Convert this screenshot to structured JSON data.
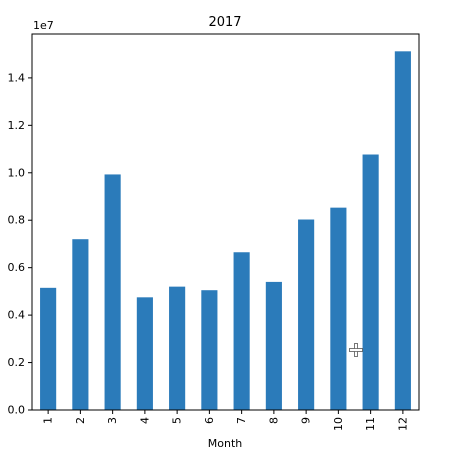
{
  "chart_data": {
    "type": "bar",
    "title": "2017",
    "xlabel": "Month",
    "ylabel": "",
    "y_offset_label": "1e7",
    "categories": [
      "1",
      "2",
      "3",
      "4",
      "5",
      "6",
      "7",
      "8",
      "9",
      "10",
      "11",
      "12"
    ],
    "values": [
      5150000,
      7200000,
      9930000,
      4750000,
      5200000,
      5050000,
      6650000,
      5400000,
      8030000,
      8530000,
      10770000,
      15120000
    ],
    "ylim": [
      0,
      15850000
    ],
    "yticks": [
      0,
      2000000,
      4000000,
      6000000,
      8000000,
      10000000,
      12000000,
      14000000
    ],
    "ytick_labels": [
      "0.0",
      "0.2",
      "0.4",
      "0.6",
      "0.8",
      "1.0",
      "1.2",
      "1.4"
    ],
    "bar_color": "#2b7bba",
    "grid": false,
    "legend": "none"
  },
  "cursor": {
    "icon": "move-cursor-icon"
  }
}
